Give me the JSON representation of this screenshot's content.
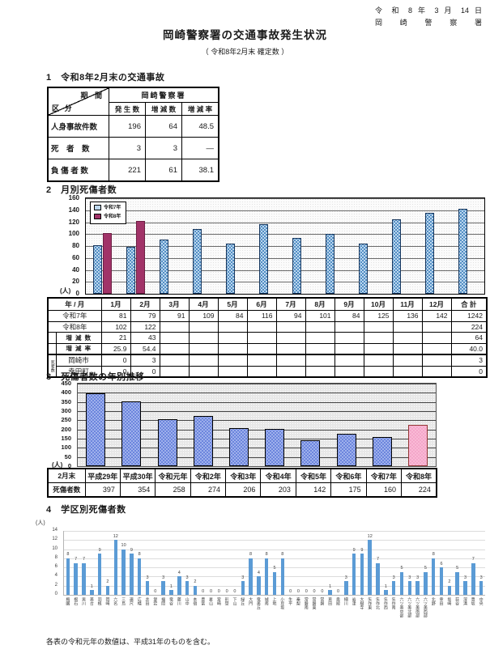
{
  "page": {
    "date_line1": "令 和 8 年 3 月 14 日",
    "date_line2": "岡 崎 警 察 署",
    "title": "岡崎警察署の交通事故発生状況",
    "subtitle": "（ 令和8年2月末 確定数 ）",
    "footnote": "各表の令和元年の数値は、平成31年のものを含む。"
  },
  "section1": {
    "heading": "1　令和8年2月末の交通事故",
    "table": {
      "corner_top": "期 間",
      "corner_bottom": "区 分",
      "org_header": "岡崎警察署",
      "col_headers": [
        "発 生 数",
        "増 減 数",
        "増 減 率"
      ],
      "rows": [
        {
          "label": "人身事故件数",
          "values": [
            "196",
            "64",
            "48.5"
          ]
        },
        {
          "label": "死　者　数",
          "values": [
            "3",
            "3",
            "―"
          ]
        },
        {
          "label": "負 傷 者 数",
          "values": [
            "221",
            "61",
            "38.1"
          ]
        }
      ]
    }
  },
  "section2": {
    "heading": "2　月別死傷者数",
    "table": {
      "header": [
        "年 / 月",
        "1月",
        "2月",
        "3月",
        "4月",
        "5月",
        "6月",
        "7月",
        "8月",
        "9月",
        "10月",
        "11月",
        "12月",
        "合 計"
      ],
      "rows": [
        {
          "label": "令和7年",
          "indent": false,
          "values": [
            "81",
            "79",
            "91",
            "109",
            "84",
            "116",
            "94",
            "101",
            "84",
            "125",
            "136",
            "142"
          ],
          "total": "1242"
        },
        {
          "label": "令和8年",
          "indent": false,
          "values": [
            "102",
            "122",
            "",
            "",
            "",
            "",
            "",
            "",
            "",
            "",
            "",
            ""
          ],
          "total": "224"
        },
        {
          "label": "増 減 数",
          "indent": true,
          "values": [
            "21",
            "43",
            "",
            "",
            "",
            "",
            "",
            "",
            "",
            "",
            "",
            ""
          ],
          "total": "64"
        },
        {
          "label": "増 減 率",
          "indent": true,
          "values": [
            "25.9",
            "54.4",
            "",
            "",
            "",
            "",
            "",
            "",
            "",
            "",
            "",
            ""
          ],
          "total": "40.0"
        }
      ],
      "death_label": "死者数",
      "death_rows": [
        {
          "label": "岡崎市",
          "values": [
            "0",
            "3",
            "",
            "",
            "",
            "",
            "",
            "",
            "",
            "",
            "",
            ""
          ],
          "total": "3"
        },
        {
          "label": "幸田町",
          "values": [
            "0",
            "0",
            "",
            "",
            "",
            "",
            "",
            "",
            "",
            "",
            "",
            ""
          ],
          "total": "0"
        }
      ]
    }
  },
  "section3": {
    "heading": "3　死傷者数の年別推移",
    "table": {
      "corner": "2月末",
      "row_label": "死傷者数",
      "years": [
        "平成29年",
        "平成30年",
        "令和元年",
        "令和2年",
        "令和3年",
        "令和4年",
        "令和5年",
        "令和6年",
        "令和7年",
        "令和8年"
      ],
      "values": [
        "397",
        "354",
        "258",
        "274",
        "206",
        "203",
        "142",
        "175",
        "160",
        "224"
      ]
    }
  },
  "section4": {
    "heading": "4　学区別死傷者数"
  },
  "chart_data": [
    {
      "type": "bar",
      "title": "月別死傷者数",
      "unit": "(人)",
      "ylim": [
        0,
        160
      ],
      "ytick": 20,
      "grid": true,
      "legend_position": "top-left",
      "categories": [
        "1月",
        "2月",
        "3月",
        "4月",
        "5月",
        "6月",
        "7月",
        "8月",
        "9月",
        "10月",
        "11月",
        "12月"
      ],
      "series": [
        {
          "name": "令和7年",
          "values": [
            81,
            79,
            91,
            109,
            84,
            116,
            94,
            101,
            84,
            125,
            136,
            142
          ],
          "fill": "#BDD7EE",
          "dot": "#2E75B6",
          "border": "#17375E"
        },
        {
          "name": "令和8年",
          "values": [
            102,
            122,
            null,
            null,
            null,
            null,
            null,
            null,
            null,
            null,
            null,
            null
          ],
          "fill": "#A13368",
          "dot": "#8D2A59",
          "border": "#6E1F44"
        }
      ]
    },
    {
      "type": "bar",
      "title": "死傷者数の年別推移",
      "unit": "(人)",
      "ylim": [
        0,
        450
      ],
      "ytick": 50,
      "grid": true,
      "categories": [
        "平成29年",
        "平成30年",
        "令和元年",
        "令和2年",
        "令和3年",
        "令和4年",
        "令和5年",
        "令和6年",
        "令和7年",
        "令和8年"
      ],
      "values": [
        397,
        354,
        258,
        274,
        206,
        203,
        142,
        175,
        160,
        224
      ],
      "bar_fill": "#9FB1EC",
      "bar_dot": "#5B76D8",
      "bar_border": "#000000",
      "highlight_index": 9,
      "highlight_fill": "#F9BAD5",
      "highlight_dot": "#F2A0C6",
      "highlight_border": "#953735"
    },
    {
      "type": "bar",
      "title": "学区別死傷者数",
      "unit": "(人)",
      "ylim": [
        0,
        14
      ],
      "ytick": 2,
      "grid": true,
      "data_labels": true,
      "bar_fill": "#5B9BD5",
      "categories": [
        "梅園",
        "根石",
        "男川",
        "美合",
        "羽根",
        "岡崎",
        "六名",
        "三島",
        "連尺",
        "広幡",
        "井田",
        "愛宕",
        "福岡",
        "竜谷",
        "藤川",
        "山中",
        "本宿",
        "豊富",
        "夏山",
        "宮崎",
        "形埜",
        "下山",
        "緑丘",
        "大門",
        "竜美丘",
        "城南",
        "上地",
        "小豆坂",
        "生平",
        "秦梨",
        "常磐南",
        "常磐東",
        "常磐",
        "恵田",
        "奥殿",
        "細川",
        "岩津",
        "大樹寺",
        "矢作東",
        "矢作北",
        "矢作西",
        "矢作南",
        "六ツ美中部",
        "六ツ美北部",
        "六ツ美南部",
        "六ツ美西部",
        "北野",
        "幸田",
        "坂崎",
        "荻谷",
        "深溝",
        "豊坂",
        "中央"
      ],
      "values": [
        8,
        7,
        7,
        1,
        9,
        2,
        12,
        10,
        9,
        8,
        3,
        0,
        3,
        1,
        4,
        3,
        2,
        0,
        0,
        0,
        0,
        0,
        3,
        8,
        4,
        8,
        5,
        8,
        0,
        0,
        0,
        0,
        0,
        1,
        0,
        3,
        9,
        9,
        12,
        7,
        1,
        3,
        5,
        3,
        3,
        5,
        8,
        6,
        2,
        5,
        3,
        7,
        3
      ]
    }
  ]
}
